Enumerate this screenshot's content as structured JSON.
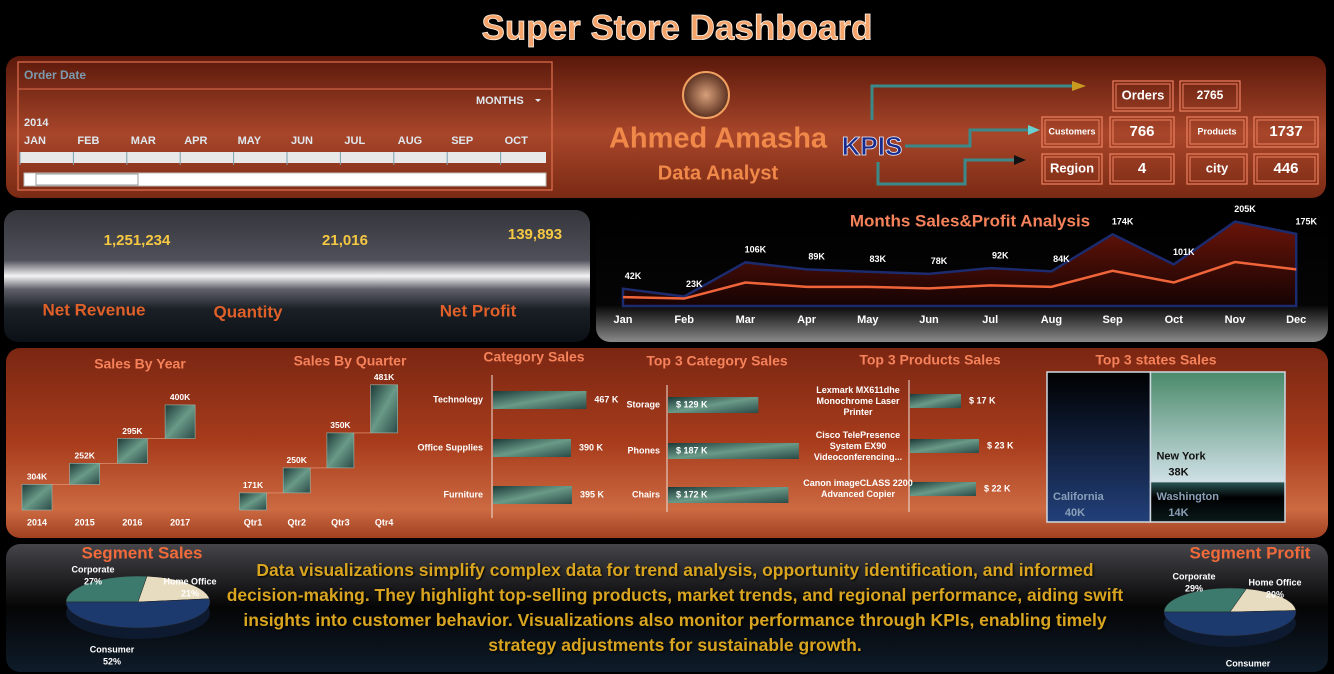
{
  "header": {
    "title": "Super Store Dashboard"
  },
  "slicer": {
    "label": "Order Date",
    "period": "MONTHS",
    "year": "2014",
    "months": [
      "JAN",
      "FEB",
      "MAR",
      "APR",
      "MAY",
      "JUN",
      "JUL",
      "AUG",
      "SEP",
      "OCT"
    ]
  },
  "profile": {
    "name": "Ahmed Amasha",
    "role": "Data Analyst"
  },
  "kpis": {
    "label": "KPIS",
    "items": [
      {
        "label": "Orders",
        "value": 2765
      },
      {
        "label": "Customers",
        "value": 766
      },
      {
        "label": "Products",
        "value": 1737
      },
      {
        "label": "Region",
        "value": 4
      },
      {
        "label": "city",
        "value": 446
      }
    ]
  },
  "summary": [
    {
      "value": "1,251,234",
      "label": "Net Revenue"
    },
    {
      "value": "21,016",
      "label": "Quantity"
    },
    {
      "value": "139,893",
      "label": "Net Profit"
    }
  ],
  "chart_data": [
    {
      "type": "area",
      "title": "Months Sales&Profit Analysis",
      "categories": [
        "Jan",
        "Feb",
        "Mar",
        "Apr",
        "May",
        "Jun",
        "Jul",
        "Aug",
        "Sep",
        "Oct",
        "Nov",
        "Dec"
      ],
      "series": [
        {
          "color": "#1c2a6e",
          "values": [
            42,
            23,
            106,
            89,
            83,
            78,
            92,
            84,
            174,
            101,
            205,
            175
          ],
          "value_labels": [
            "42K",
            "23K",
            "106K",
            "89K",
            "83K",
            "78K",
            "92K",
            "84K",
            "174K",
            "101K",
            "205K",
            "175K"
          ]
        },
        {
          "color": "#f0643a",
          "axis": "y2",
          "values": [
            2,
            1,
            12,
            9,
            9,
            8,
            10,
            9,
            20,
            12,
            26,
            21
          ]
        }
      ]
    },
    {
      "type": "waterfall",
      "title": "Sales By Year",
      "categories": [
        "2014",
        "2015",
        "2016",
        "2017"
      ],
      "values": [
        304,
        252,
        295,
        400
      ],
      "value_labels": [
        "304K",
        "252K",
        "295K",
        "400K"
      ]
    },
    {
      "type": "waterfall",
      "title": "Sales By Quarter",
      "categories": [
        "Qtr1",
        "Qtr2",
        "Qtr3",
        "Qtr4"
      ],
      "values": [
        171,
        250,
        350,
        481
      ],
      "value_labels": [
        "171K",
        "250K",
        "350K",
        "481K"
      ]
    },
    {
      "type": "barh",
      "title": "Category Sales",
      "categories": [
        "Technology",
        "Office Supplies",
        "Furniture"
      ],
      "values": [
        467,
        390,
        395
      ],
      "value_labels": [
        "467 K",
        "390 K",
        "395 K"
      ]
    },
    {
      "type": "barh",
      "title": "Top 3 Category Sales",
      "categories": [
        "Storage",
        "Phones",
        "Chairs"
      ],
      "values": [
        129,
        187,
        172
      ],
      "value_labels": [
        "$ 129 K",
        "$ 187 K",
        "$ 172 K"
      ]
    },
    {
      "type": "barh",
      "title": "Top 3 Products  Sales",
      "categories": [
        "Lexmark MX611dhe Monochrome Laser Printer",
        "Cisco TelePresence System EX90 Videoconferencing...",
        "Canon imageCLASS 2200 Advanced Copier"
      ],
      "values": [
        17,
        23,
        22
      ],
      "value_labels": [
        "$ 17 K",
        "$ 23 K",
        "$ 22 K"
      ]
    },
    {
      "type": "treemap",
      "title": "Top 3 states Sales",
      "categories": [
        "California",
        "New York",
        "Washington"
      ],
      "values": [
        40,
        38,
        14
      ],
      "value_labels": [
        "40K",
        "38K",
        "14K"
      ]
    },
    {
      "type": "pie",
      "title": "Segment Sales",
      "categories": [
        "Corporate",
        "Home Office",
        "Consumer"
      ],
      "values": [
        27,
        21,
        52
      ],
      "value_labels": [
        "27%",
        "21%",
        "52%"
      ],
      "colors": [
        "#3d7a6e",
        "#e8dcc0",
        "#1d3a6e"
      ]
    },
    {
      "type": "pie",
      "title": "Segment Profit",
      "categories": [
        "Corporate",
        "Home Office",
        "Consumer"
      ],
      "values": [
        29,
        20,
        51
      ],
      "value_labels": [
        "29%",
        "20%",
        null
      ],
      "colors": [
        "#3d7a6e",
        "#e8dcc0",
        "#1d3a6e"
      ]
    }
  ],
  "note": "Data visualizations simplify complex data for trend analysis, opportunity identification, and informed decision-making. They highlight top-selling products, market trends, and regional performance, aiding swift insights into customer behavior. Visualizations also monitor performance through KPIs, enabling timely strategy adjustments for sustainable growth."
}
